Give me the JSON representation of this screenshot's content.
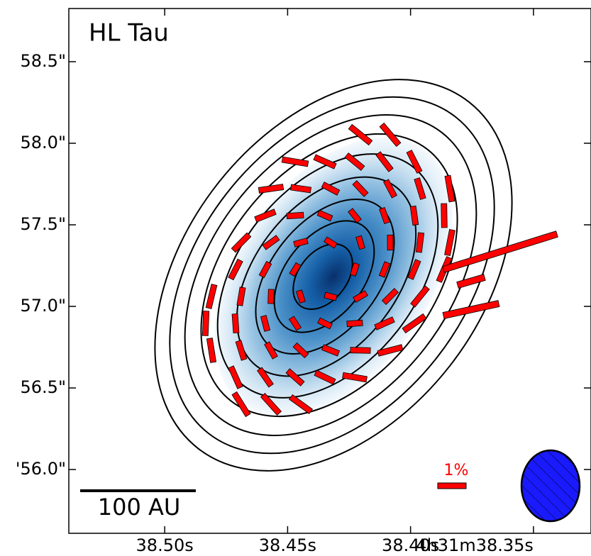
{
  "chart_data": {
    "type": "map",
    "title": "HL Tau",
    "xlim": [
      38.539,
      38.3266
    ],
    "xticks": [
      {
        "value": 38.5,
        "label": "38.50s"
      },
      {
        "value": 38.45,
        "label": "38.45s"
      },
      {
        "value": 38.4,
        "label": "38.40s"
      },
      {
        "value": 38.35,
        "label": "4h31m38.35s"
      }
    ],
    "ylim": [
      55.609,
      58.826
    ],
    "yticks": [
      {
        "value": 56.0,
        "label": "'56.0\""
      },
      {
        "value": 56.5,
        "label": "56.5\""
      },
      {
        "value": 57.0,
        "label": "57.0\""
      },
      {
        "value": 57.5,
        "label": "57.5\""
      },
      {
        "value": 58.0,
        "label": "58.0\""
      },
      {
        "value": 58.5,
        "label": "58.5\""
      }
    ],
    "scale_bar_label": "100 AU",
    "vector_scale_label": "1%",
    "vector_color": "#ff0000"
  }
}
